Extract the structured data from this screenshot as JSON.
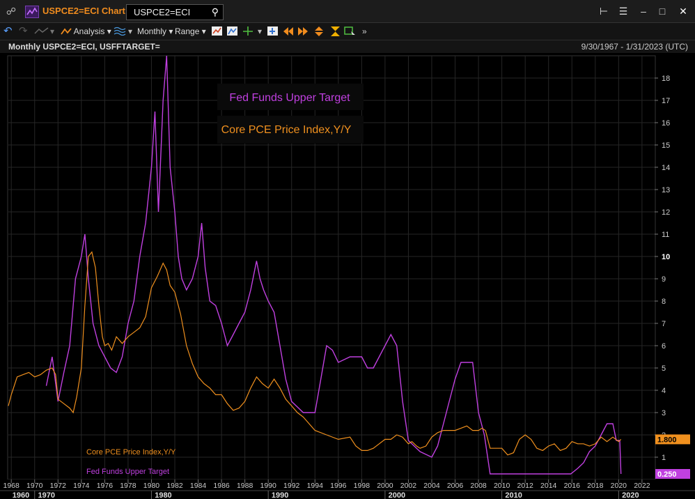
{
  "window": {
    "title": "USPCE2=ECI Chart",
    "search_value": "USPCE2=ECI"
  },
  "toolbar": {
    "analysis_label": "Analysis",
    "interval_label": "Monthly",
    "range_label": "Range"
  },
  "info": {
    "title": "Monthly USPCE2=ECI, USFFTARGET=",
    "date_range": "9/30/1967 - 1/31/2023 (UTC)"
  },
  "colors": {
    "pce": "#f0901e",
    "fed": "#c040e0",
    "background": "#000000",
    "grid": "#262626"
  },
  "chart_data": {
    "type": "line",
    "ylim": [
      0,
      19
    ],
    "y_ticks": [
      1,
      2,
      3,
      4,
      5,
      6,
      7,
      8,
      9,
      10,
      11,
      12,
      13,
      14,
      15,
      16,
      17,
      18
    ],
    "x_range": [
      1967.75,
      2023.08
    ],
    "x_tick_labels": [
      "1968",
      "1970",
      "1972",
      "1974",
      "1976",
      "1978",
      "1980",
      "1982",
      "1984",
      "1986",
      "1988",
      "1990",
      "1992",
      "1994",
      "1996",
      "1998",
      "2000",
      "2002",
      "2004",
      "2006",
      "2008",
      "2010",
      "2012",
      "2014",
      "2016",
      "2018",
      "2020",
      "2022"
    ],
    "decade_labels": [
      "1960",
      "1970",
      "1980",
      "1990",
      "2000",
      "2010",
      "2020"
    ],
    "grid": true,
    "legend": "top-center",
    "legend_entries": [
      "Fed Funds Upper Target",
      "Core PCE Price Index,Y/Y"
    ],
    "series": [
      {
        "name": "Core PCE Price Index,Y/Y",
        "last_value_label": "1.800",
        "x": [
          1967.75,
          1968.0,
          1968.5,
          1969.0,
          1969.5,
          1970.0,
          1970.5,
          1971.0,
          1971.5,
          1971.8,
          1972.0,
          1972.5,
          1973.0,
          1973.3,
          1973.6,
          1974.0,
          1974.3,
          1974.6,
          1974.9,
          1975.2,
          1975.5,
          1975.8,
          1976.0,
          1976.3,
          1976.6,
          1977.0,
          1977.5,
          1978.0,
          1978.5,
          1979.0,
          1979.5,
          1980.0,
          1980.5,
          1981.0,
          1981.3,
          1981.6,
          1982.0,
          1982.5,
          1983.0,
          1983.5,
          1984.0,
          1984.5,
          1985.0,
          1985.5,
          1986.0,
          1986.5,
          1987.0,
          1987.5,
          1988.0,
          1988.5,
          1989.0,
          1989.5,
          1990.0,
          1990.5,
          1991.0,
          1991.5,
          1992.0,
          1992.5,
          1993.0,
          1993.5,
          1994.0,
          1995.0,
          1996.0,
          1997.0,
          1997.5,
          1998.0,
          1998.5,
          1999.0,
          1999.5,
          2000.0,
          2000.5,
          2001.0,
          2001.5,
          2002.0,
          2002.3,
          2002.7,
          2003.0,
          2003.5,
          2004.0,
          2004.5,
          2005.0,
          2005.5,
          2006.0,
          2006.5,
          2007.0,
          2007.5,
          2008.0,
          2008.3,
          2008.6,
          2009.0,
          2009.5,
          2010.0,
          2010.5,
          2011.0,
          2011.5,
          2012.0,
          2012.5,
          2013.0,
          2013.5,
          2014.0,
          2014.5,
          2015.0,
          2015.5,
          2016.0,
          2016.5,
          2017.0,
          2017.5,
          2018.0,
          2018.5,
          2019.0,
          2019.5,
          2020.0,
          2020.2
        ],
        "values": [
          3.3,
          3.8,
          4.6,
          4.7,
          4.8,
          4.6,
          4.7,
          4.9,
          5.0,
          4.7,
          3.6,
          3.4,
          3.2,
          3.0,
          3.7,
          5.0,
          7.8,
          10.0,
          10.2,
          9.5,
          7.8,
          6.4,
          6.0,
          6.1,
          5.8,
          6.4,
          6.1,
          6.4,
          6.6,
          6.8,
          7.3,
          8.6,
          9.1,
          9.7,
          9.4,
          8.7,
          8.4,
          7.4,
          6.0,
          5.2,
          4.6,
          4.3,
          4.1,
          3.8,
          3.8,
          3.4,
          3.1,
          3.2,
          3.5,
          4.1,
          4.6,
          4.3,
          4.1,
          4.5,
          4.1,
          3.6,
          3.3,
          3.0,
          2.8,
          2.5,
          2.2,
          2.0,
          1.8,
          1.9,
          1.5,
          1.3,
          1.3,
          1.4,
          1.6,
          1.8,
          1.8,
          2.0,
          1.9,
          1.6,
          1.7,
          1.5,
          1.4,
          1.5,
          1.9,
          2.1,
          2.2,
          2.2,
          2.2,
          2.3,
          2.4,
          2.2,
          2.2,
          2.3,
          2.2,
          1.4,
          1.4,
          1.4,
          1.1,
          1.2,
          1.8,
          2.0,
          1.8,
          1.4,
          1.3,
          1.5,
          1.6,
          1.3,
          1.4,
          1.7,
          1.6,
          1.6,
          1.5,
          1.6,
          1.9,
          1.7,
          1.9,
          1.7,
          1.8
        ]
      },
      {
        "name": "Fed Funds Upper Target",
        "last_value_label": "0.250",
        "x": [
          1971.0,
          1971.5,
          1972.0,
          1972.5,
          1973.0,
          1973.5,
          1974.0,
          1974.3,
          1974.6,
          1975.0,
          1975.5,
          1976.0,
          1976.5,
          1977.0,
          1977.5,
          1978.0,
          1978.5,
          1979.0,
          1979.5,
          1980.0,
          1980.3,
          1980.6,
          1981.0,
          1981.3,
          1981.6,
          1982.0,
          1982.3,
          1982.6,
          1983.0,
          1983.5,
          1984.0,
          1984.3,
          1984.6,
          1985.0,
          1985.5,
          1986.0,
          1986.5,
          1987.0,
          1987.5,
          1988.0,
          1988.5,
          1989.0,
          1989.3,
          1989.6,
          1990.0,
          1990.5,
          1991.0,
          1991.5,
          1992.0,
          1993.0,
          1994.0,
          1994.5,
          1995.0,
          1995.5,
          1996.0,
          1997.0,
          1998.0,
          1998.5,
          1999.0,
          1999.5,
          2000.0,
          2000.5,
          2001.0,
          2001.5,
          2002.0,
          2003.0,
          2004.0,
          2004.5,
          2005.0,
          2005.5,
          2006.0,
          2006.5,
          2007.0,
          2007.5,
          2008.0,
          2008.5,
          2009.0,
          2015.9,
          2016.5,
          2017.0,
          2017.5,
          2018.0,
          2018.5,
          2019.0,
          2019.5,
          2019.8,
          2020.1,
          2020.2
        ],
        "values": [
          4.2,
          5.5,
          3.5,
          4.8,
          6.0,
          9.0,
          10.0,
          11.0,
          9.0,
          7.0,
          6.0,
          5.5,
          5.0,
          4.8,
          5.5,
          7.0,
          8.0,
          10.0,
          11.5,
          14.0,
          16.5,
          12.0,
          17.0,
          19.0,
          14.0,
          12.0,
          10.0,
          9.0,
          8.5,
          9.0,
          10.0,
          11.5,
          9.5,
          8.0,
          7.8,
          7.0,
          6.0,
          6.5,
          7.0,
          7.5,
          8.5,
          9.8,
          9.0,
          8.5,
          8.0,
          7.5,
          6.0,
          4.5,
          3.5,
          3.0,
          3.0,
          4.5,
          6.0,
          5.8,
          5.25,
          5.5,
          5.5,
          5.0,
          5.0,
          5.5,
          6.0,
          6.5,
          6.0,
          3.5,
          1.75,
          1.25,
          1.0,
          1.5,
          2.5,
          3.5,
          4.5,
          5.25,
          5.25,
          5.25,
          3.0,
          2.0,
          0.25,
          0.25,
          0.5,
          0.75,
          1.25,
          1.5,
          2.0,
          2.5,
          2.5,
          1.75,
          1.75,
          0.25
        ]
      }
    ]
  }
}
